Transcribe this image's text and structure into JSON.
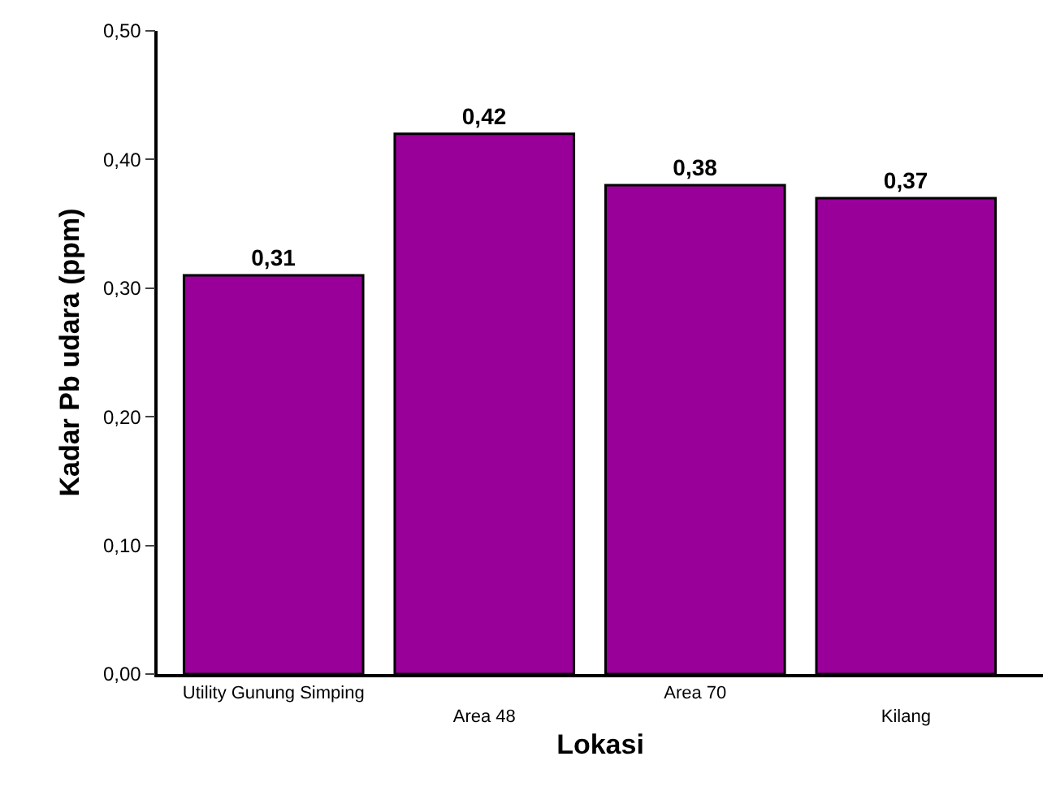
{
  "chart_data": {
    "type": "bar",
    "xlabel": "Lokasi",
    "ylabel": "Kadar Pb udara (ppm)",
    "categories": [
      "Utility Gunung Simping",
      "Area 48",
      "Area 70",
      "Kilang"
    ],
    "values": [
      0.31,
      0.42,
      0.38,
      0.37
    ],
    "value_labels": [
      "0,31",
      "0,42",
      "0,38",
      "0,37"
    ],
    "color": "#990099",
    "ylim": [
      0,
      0.5
    ],
    "yticks": [
      {
        "value": 0,
        "label": "0,00"
      },
      {
        "value": 0.1,
        "label": "0,10"
      },
      {
        "value": 0.2,
        "label": "0,20"
      },
      {
        "value": 0.3,
        "label": "0,30"
      },
      {
        "value": 0.4,
        "label": "0,40"
      },
      {
        "value": 0.5,
        "label": "0,50"
      }
    ],
    "grid": false,
    "legend": false
  }
}
